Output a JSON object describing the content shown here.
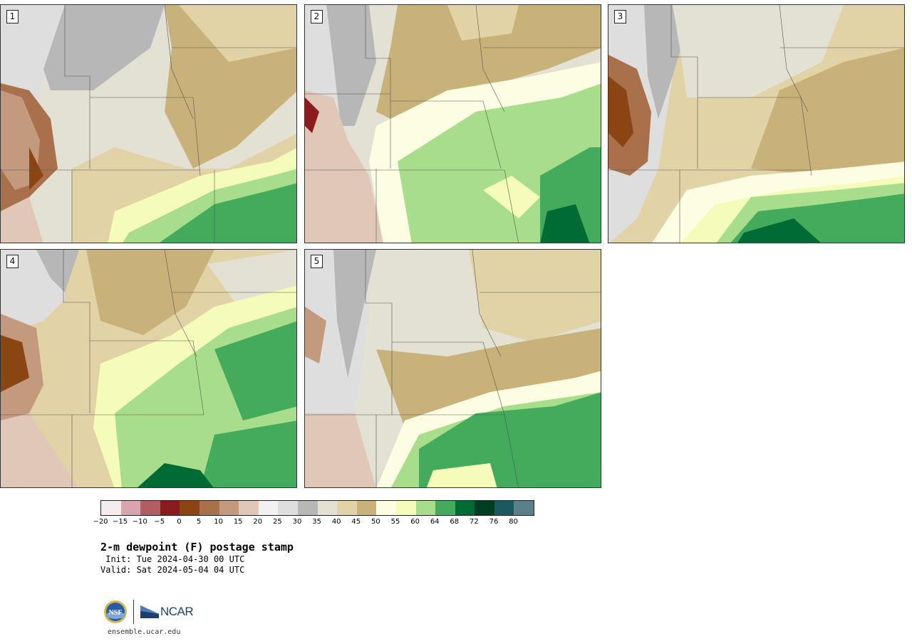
{
  "panels": [
    {
      "label": "1"
    },
    {
      "label": "2"
    },
    {
      "label": "3"
    },
    {
      "label": "4"
    },
    {
      "label": "5"
    }
  ],
  "colorbar": {
    "colors": [
      "#f5ecee",
      "#d9a4ab",
      "#b25c64",
      "#8c1b1f",
      "#8a4512",
      "#a8714b",
      "#c49a7f",
      "#e0c7b7",
      "#f1f1f1",
      "#dedede",
      "#b7b7b7",
      "#e2e1d3",
      "#e2d3a7",
      "#c9b27a",
      "#fdfde3",
      "#f5fbb9",
      "#a8de8b",
      "#43ab5b",
      "#006b34",
      "#003d22",
      "#1a5a5e",
      "#5a8189"
    ],
    "ticks": [
      "−20",
      "−15",
      "−10",
      "−5",
      "0",
      "5",
      "10",
      "15",
      "20",
      "25",
      "30",
      "35",
      "40",
      "45",
      "50",
      "55",
      "60",
      "64",
      "68",
      "72",
      "76",
      "80"
    ]
  },
  "title": "2-m dewpoint (F) postage stamp",
  "init": " Init: Tue 2024-04-30 00 UTC",
  "valid": "Valid: Sat 2024-05-04 04 UTC",
  "logos": {
    "nsf": "NSF",
    "ncar": "NCAR"
  },
  "website": "ensemble.ucar.edu"
}
